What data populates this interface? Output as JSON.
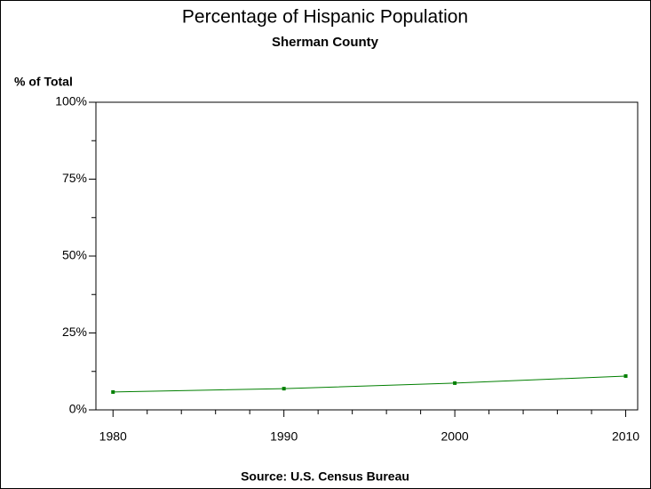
{
  "chart_data": {
    "type": "line",
    "title": "Percentage of Hispanic Population",
    "subtitle": "Sherman County",
    "y_label": "% of Total",
    "footnote": "Source: U.S. Census Bureau",
    "x": [
      1980,
      1990,
      2000,
      2010
    ],
    "series": [
      {
        "color": "#007f00",
        "values": [
          5.8,
          6.9,
          8.7,
          11.0
        ]
      }
    ],
    "xlim": [
      1979,
      2010.7
    ],
    "xticks": [
      1980,
      1990,
      2000,
      2010
    ],
    "x_minor_ticks": [
      1982,
      1984,
      1986,
      1988,
      1992,
      1994,
      1996,
      1998,
      2002,
      2004,
      2006,
      2008
    ],
    "ylim": [
      0,
      100
    ],
    "yticks": [
      {
        "value": 0,
        "label": "0%"
      },
      {
        "value": 25,
        "label": "25%"
      },
      {
        "value": 50,
        "label": "50%"
      },
      {
        "value": 75,
        "label": "75%"
      },
      {
        "value": 100,
        "label": "100%"
      }
    ],
    "y_minor_ticks": [
      12.5,
      37.5,
      62.5,
      87.5
    ]
  }
}
